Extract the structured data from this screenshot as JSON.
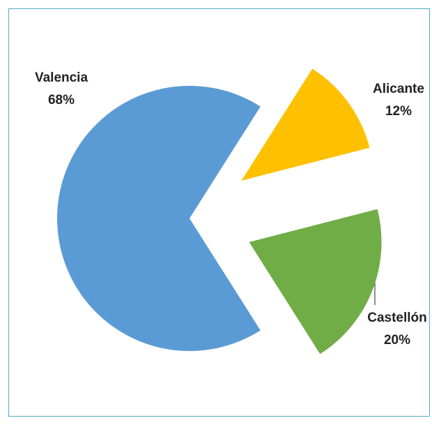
{
  "chart_data": {
    "type": "pie",
    "categories": [
      "Valencia",
      "Alicante",
      "Castellón"
    ],
    "values": [
      68,
      12,
      20
    ],
    "value_labels": [
      "68%",
      "12%",
      "20%"
    ],
    "colors": [
      "#5b9bd5",
      "#ffc000",
      "#70ad47"
    ]
  }
}
